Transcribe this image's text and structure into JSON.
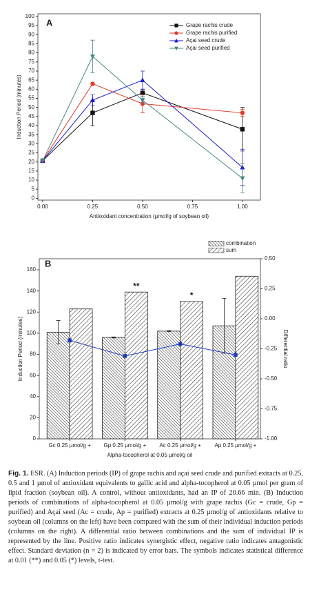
{
  "chart_data": [
    {
      "type": "line",
      "panel_label": "A",
      "x_label": "Antioxidant concentration (µmol/g of soybean oil)",
      "y_label": "Induction Period (minutes)",
      "x": [
        0,
        0.25,
        0.5,
        1
      ],
      "xlim": [
        -0.024,
        1.09
      ],
      "xticks": [
        {
          "value": 0,
          "label": "0.00"
        },
        {
          "value": 0.25,
          "label": "0.25"
        },
        {
          "value": 0.5,
          "label": "0.50"
        },
        {
          "value": 0.75,
          "label": "0.75"
        },
        {
          "value": 1,
          "label": "1.00"
        }
      ],
      "ylim": [
        -1,
        101.5
      ],
      "yticks": [
        0,
        5,
        10,
        15,
        20,
        25,
        30,
        35,
        40,
        45,
        50,
        55,
        60,
        65,
        70,
        75,
        80,
        85,
        90,
        95,
        100
      ],
      "legend": "upper right",
      "series": [
        {
          "name": "Grape rachis crude",
          "color": "#111111",
          "marker": "square",
          "values": [
            20.66,
            47,
            58,
            38
          ],
          "errors": [
            null,
            7,
            2,
            12
          ]
        },
        {
          "name": "Grape rachis purified",
          "color": "#e03a2c",
          "marker": "circle",
          "values": [
            20.66,
            63,
            52,
            47
          ],
          "errors": [
            null,
            null,
            5,
            2
          ]
        },
        {
          "name": "Açai seed crude",
          "color": "#1c1cd0",
          "marker": "triangle-up",
          "values": [
            20.66,
            54,
            65,
            17
          ],
          "errors": [
            null,
            3,
            5,
            10
          ]
        },
        {
          "name": "Açai seed purified",
          "color": "#4a8585",
          "marker": "triangle-down",
          "values": [
            20.66,
            78,
            54,
            11
          ],
          "errors": [
            null,
            9,
            2,
            8
          ]
        }
      ]
    },
    {
      "type": "bar",
      "panel_label": "B",
      "x_label": "Alpha-tocopherol at 0.05 µmol/g oil",
      "y_label": "Induction Period (minutes)",
      "y2_label": "Differential ratio",
      "categories": [
        "Gc 0.25 µmol/g +",
        "Gp 0.25 µmol/g +",
        "Ac 0.25 µmol/g +",
        "Ap 0.25 µmol/g +"
      ],
      "ylim": [
        0,
        170.5
      ],
      "yticks": [
        0,
        20,
        40,
        60,
        80,
        100,
        120,
        140,
        160
      ],
      "y2lim": [
        -1,
        0.5
      ],
      "y2ticks": [
        {
          "value": -1,
          "label": "-1.00"
        },
        {
          "value": -0.75,
          "label": "-0.75"
        },
        {
          "value": -0.5,
          "label": "-0.50"
        },
        {
          "value": -0.25,
          "label": "-0.25"
        },
        {
          "value": 0,
          "label": "0.00"
        },
        {
          "value": 0.25,
          "label": "0.25"
        },
        {
          "value": 0.5,
          "label": "0.50"
        }
      ],
      "legend": "above right",
      "series": [
        {
          "name": "combination",
          "color": "#222222",
          "hatch": "backslash",
          "values": [
            101,
            96,
            102,
            107
          ],
          "errors": [
            11,
            0.5,
            0.5,
            26
          ]
        },
        {
          "name": "sum",
          "color": "#222222",
          "hatch": "slash",
          "values": [
            123,
            139,
            130,
            154
          ]
        },
        {
          "type": "line",
          "axis": "y2",
          "color": "#1f3bbf",
          "marker": "square",
          "values": [
            -0.18,
            -0.31,
            -0.21,
            -0.3
          ]
        }
      ],
      "annotations": [
        {
          "text": "**",
          "category": "Gp 0.25 µmol/g +"
        },
        {
          "text": "*",
          "category": "Ac 0.25 µmol/g +"
        }
      ]
    }
  ],
  "caption": {
    "label": "Fig. 1.",
    "text": "ESR. (A) Induction periods (IP) of grape rachis and açaí seed crude and purified extracts at 0.25, 0.5 and 1 µmol of antioxidant equivalents to gallic acid and alpha-tocopherol at 0.05 µmol per gram of lipid fraction (soybean oil). A control, without antioxidants, had an IP of 20.66 min. (B) Induction periods of combinations of alpha-tocopherol at 0.05 µmol/g with grape rachis (Gc = crude, Gp = purified) and Açaí seed (Ac = crude, Ap = purified) extracts at 0.25 µmol/g of antioxidants relative to soybean oil (columns on the left) have been compared with the sum of their individual induction periods (columns on the right). A differential ratio between combinations and the sum of individual IP is represented by the line. Positive ratio indicates synergistic effect, negative ratio indicates antagonistic effect. Standard deviation (n = 2) is indicated by error bars. The symbols indicates statistical difference at 0.01 (**) and 0.05 (*) levels, t-test."
  }
}
